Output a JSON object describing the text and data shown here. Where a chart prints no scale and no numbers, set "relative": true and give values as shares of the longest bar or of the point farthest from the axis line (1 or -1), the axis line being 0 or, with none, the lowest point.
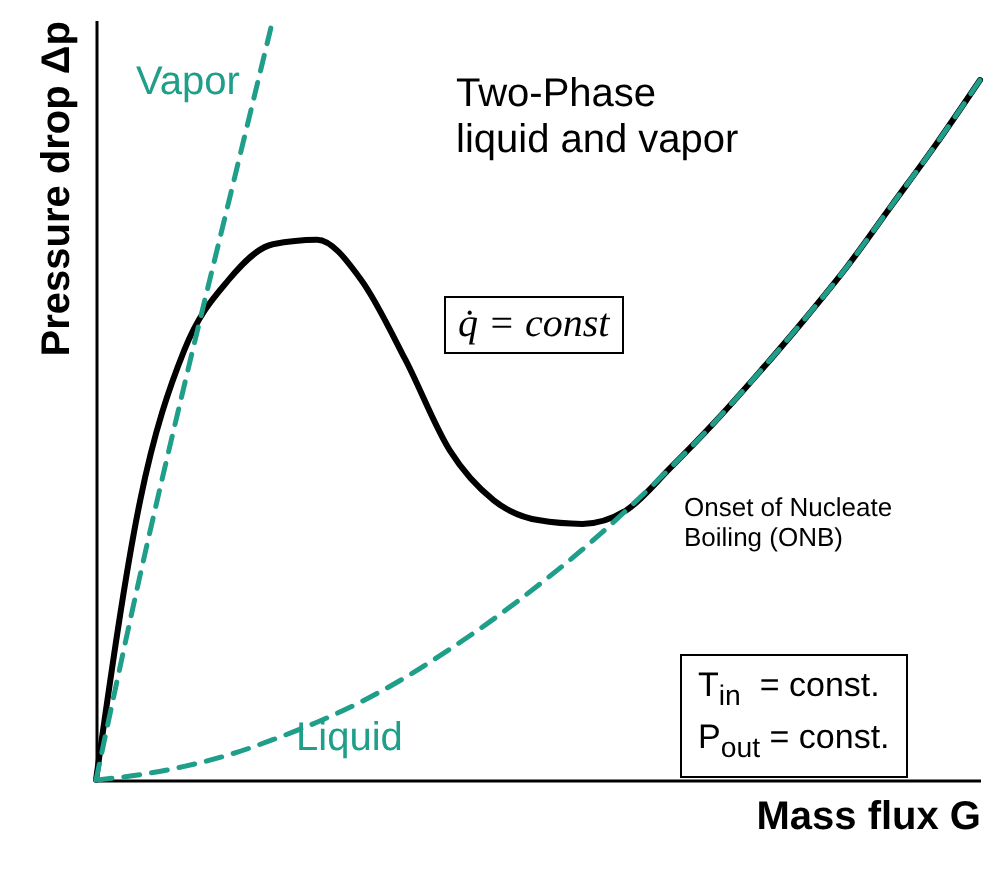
{
  "chart_data": {
    "type": "line",
    "relative": true,
    "xlabel": "Mass flux G",
    "ylabel": "Pressure drop Δp",
    "categories": [
      null,
      null,
      null,
      null,
      null,
      null,
      null,
      null,
      null,
      null,
      null,
      null,
      null,
      null,
      null,
      null,
      null,
      null,
      null,
      null,
      null
    ],
    "series": [
      {
        "color": "#000000",
        "line_style": "solid",
        "values": [
          0,
          0.368,
          0.566,
          0.658,
          0.705,
          0.711,
          0.658,
          0.553,
          0.434,
          0.368,
          0.342,
          0.337,
          0.355,
          0.411,
          0.471,
          0.536,
          0.604,
          0.676,
          0.756,
          0.836,
          0.921
        ]
      },
      {
        "name": "Vapor",
        "color": "#1f9e89",
        "line_style": "dashed",
        "values": [
          0,
          0.27,
          0.52,
          0.76,
          1,
          null,
          null,
          null,
          null,
          null,
          null,
          null,
          null,
          null,
          null,
          null,
          null,
          null,
          null,
          null,
          null
        ]
      },
      {
        "name": "Liquid",
        "color": "#1f9e89",
        "line_style": "dashed",
        "values": [
          0,
          0.007,
          0.018,
          0.033,
          0.053,
          0.076,
          0.103,
          0.135,
          0.172,
          0.212,
          0.256,
          0.303,
          0.355,
          0.411,
          0.471,
          0.536,
          0.604,
          0.676,
          0.756,
          0.836,
          0.921
        ]
      }
    ],
    "annotations": [
      "Two-Phase\nliquid and vapor",
      "q̇ = const",
      "Onset of Nucleate\nBoiling (ONB)",
      "T$_{in}$  = const.\nP$_{out}$ = const."
    ]
  }
}
